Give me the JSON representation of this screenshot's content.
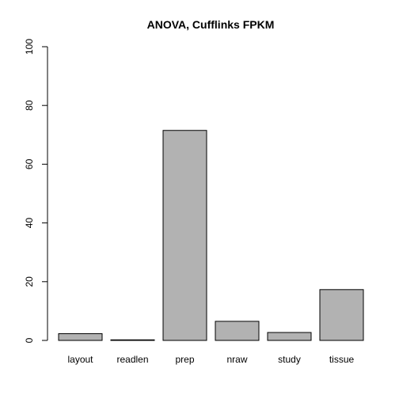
{
  "chart_data": {
    "type": "bar",
    "title": "ANOVA, Cufflinks FPKM",
    "xlabel": "",
    "ylabel": "",
    "categories": [
      "layout",
      "readlen",
      "prep",
      "nraw",
      "study",
      "tissue"
    ],
    "values": [
      2.3,
      0.2,
      71.5,
      6.5,
      2.7,
      17.3
    ],
    "ylim": [
      0,
      100
    ],
    "yticks": [
      0,
      20,
      40,
      60,
      80,
      100
    ],
    "grid": false,
    "legend": "none",
    "bar_color": "#b2b2b2",
    "bar_border_color": "#000000"
  }
}
